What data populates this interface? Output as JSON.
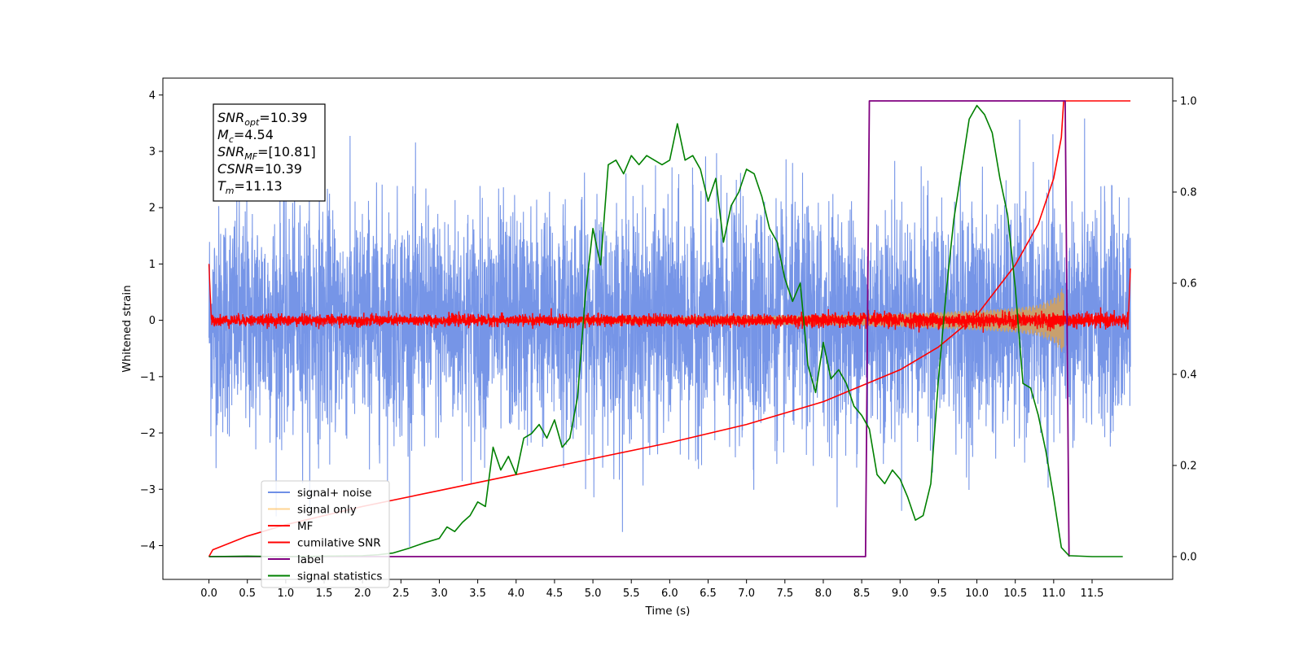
{
  "chart_data": {
    "type": "line",
    "xlabel": "Time (s)",
    "ylabel": "Whitened strain",
    "xlim": [
      -0.6,
      12.55
    ],
    "ylim_left": [
      -4.6,
      4.3
    ],
    "ylim_right": [
      -0.05,
      1.05
    ],
    "x_ticks": [
      0.0,
      0.5,
      1.0,
      1.5,
      2.0,
      2.5,
      3.0,
      3.5,
      4.0,
      4.5,
      5.0,
      5.5,
      6.0,
      6.5,
      7.0,
      7.5,
      8.0,
      8.5,
      9.0,
      9.5,
      10.0,
      10.5,
      11.0,
      11.5
    ],
    "x_tick_labels": [
      "0.0",
      "0.5",
      "1.0",
      "1.5",
      "2.0",
      "2.5",
      "3.0",
      "3.5",
      "4.0",
      "4.5",
      "5.0",
      "5.5",
      "6.0",
      "6.5",
      "7.0",
      "7.5",
      "8.0",
      "8.5",
      "9.0",
      "9.5",
      "10.0",
      "10.5",
      "11.0",
      "11.5"
    ],
    "y_left_ticks": [
      -4,
      -3,
      -2,
      -1,
      0,
      1,
      2,
      3,
      4
    ],
    "y_left_tick_labels": [
      "−4",
      "−3",
      "−2",
      "−1",
      "0",
      "1",
      "2",
      "3",
      "4"
    ],
    "y_right_ticks": [
      0.0,
      0.2,
      0.4,
      0.6,
      0.8,
      1.0
    ],
    "y_right_tick_labels": [
      "0.0",
      "0.2",
      "0.4",
      "0.6",
      "0.8",
      "1.0"
    ],
    "grid": false,
    "legend_position": "lower-left",
    "annotation": {
      "lines": [
        {
          "sym": "SNR",
          "sub": "opt",
          "value": "=10.39"
        },
        {
          "sym": "M",
          "sub": "c",
          "value": "=4.54"
        },
        {
          "sym": "SNR",
          "sub": "MF",
          "value": "=[10.81]"
        },
        {
          "sym": "CSNR",
          "sub": "",
          "value": "=10.39"
        },
        {
          "sym": "T",
          "sub": "m",
          "value": "=11.13"
        }
      ]
    },
    "series": [
      {
        "name": "signal+ noise",
        "axis": "left",
        "color": "#6f8fe6",
        "description_stats": {
          "x_start": 0.0,
          "x_end": 12.0,
          "sigma": 1.0,
          "min": -4.15,
          "max": 3.9
        }
      },
      {
        "name": "signal only",
        "axis": "left",
        "color": "#ffc266",
        "x": [
          0.0,
          8.5,
          9.0,
          9.5,
          10.0,
          10.5,
          10.8,
          11.0,
          11.1,
          11.13
        ],
        "envelope": [
          0.0,
          0.1,
          0.12,
          0.15,
          0.18,
          0.22,
          0.28,
          0.4,
          0.55,
          0.65
        ]
      },
      {
        "name": "MF",
        "axis": "left",
        "color": "#ff0000",
        "description_stats": {
          "x_start": 0.0,
          "x_end": 12.0,
          "sigma": 0.05,
          "start_value": 1.0,
          "end_value": 0.92
        }
      },
      {
        "name": "cumilative SNR",
        "axis": "right",
        "color": "#ff0000",
        "x": [
          0.0,
          0.05,
          0.5,
          1.0,
          2.0,
          3.0,
          4.0,
          5.0,
          6.0,
          7.0,
          7.5,
          8.0,
          8.5,
          9.0,
          9.5,
          10.0,
          10.5,
          10.8,
          11.0,
          11.1,
          11.13,
          12.0
        ],
        "values": [
          0.0,
          0.015,
          0.045,
          0.07,
          0.11,
          0.145,
          0.18,
          0.215,
          0.25,
          0.29,
          0.315,
          0.34,
          0.375,
          0.41,
          0.46,
          0.53,
          0.64,
          0.73,
          0.83,
          0.92,
          1.0,
          1.0
        ]
      },
      {
        "name": "label",
        "axis": "right",
        "color": "#800080",
        "x": [
          0.0,
          8.55,
          8.6,
          11.15,
          11.2
        ],
        "values": [
          0.0,
          0.0,
          1.0,
          1.0,
          0.0
        ]
      },
      {
        "name": "signal statistics",
        "axis": "right",
        "color": "#008000",
        "x": [
          0.0,
          0.5,
          1.0,
          1.5,
          2.0,
          2.2,
          2.4,
          2.6,
          2.8,
          3.0,
          3.1,
          3.2,
          3.3,
          3.4,
          3.5,
          3.6,
          3.7,
          3.8,
          3.9,
          4.0,
          4.1,
          4.2,
          4.3,
          4.4,
          4.5,
          4.6,
          4.7,
          4.8,
          4.9,
          5.0,
          5.1,
          5.2,
          5.3,
          5.4,
          5.5,
          5.6,
          5.7,
          5.8,
          5.9,
          6.0,
          6.1,
          6.2,
          6.3,
          6.4,
          6.5,
          6.6,
          6.7,
          6.8,
          6.9,
          7.0,
          7.1,
          7.2,
          7.3,
          7.4,
          7.5,
          7.6,
          7.7,
          7.8,
          7.9,
          8.0,
          8.1,
          8.2,
          8.3,
          8.4,
          8.5,
          8.6,
          8.7,
          8.8,
          8.9,
          9.0,
          9.1,
          9.2,
          9.3,
          9.4,
          9.5,
          9.6,
          9.7,
          9.8,
          9.9,
          10.0,
          10.1,
          10.2,
          10.3,
          10.4,
          10.5,
          10.6,
          10.7,
          10.8,
          10.9,
          11.0,
          11.1,
          11.2,
          11.5,
          11.9
        ],
        "values": [
          0.0,
          0.001,
          0.0,
          0.001,
          0.002,
          0.004,
          0.008,
          0.018,
          0.03,
          0.04,
          0.065,
          0.055,
          0.075,
          0.09,
          0.12,
          0.11,
          0.24,
          0.19,
          0.22,
          0.18,
          0.26,
          0.27,
          0.29,
          0.26,
          0.3,
          0.24,
          0.26,
          0.35,
          0.57,
          0.72,
          0.64,
          0.86,
          0.87,
          0.84,
          0.88,
          0.86,
          0.88,
          0.87,
          0.86,
          0.87,
          0.95,
          0.87,
          0.88,
          0.85,
          0.78,
          0.83,
          0.69,
          0.77,
          0.8,
          0.85,
          0.84,
          0.79,
          0.72,
          0.69,
          0.61,
          0.56,
          0.6,
          0.42,
          0.36,
          0.47,
          0.39,
          0.41,
          0.38,
          0.33,
          0.31,
          0.28,
          0.18,
          0.16,
          0.19,
          0.17,
          0.13,
          0.08,
          0.09,
          0.16,
          0.39,
          0.58,
          0.74,
          0.85,
          0.96,
          0.99,
          0.97,
          0.93,
          0.83,
          0.75,
          0.59,
          0.38,
          0.37,
          0.31,
          0.23,
          0.13,
          0.02,
          0.002,
          0.0,
          0.0
        ]
      }
    ]
  }
}
